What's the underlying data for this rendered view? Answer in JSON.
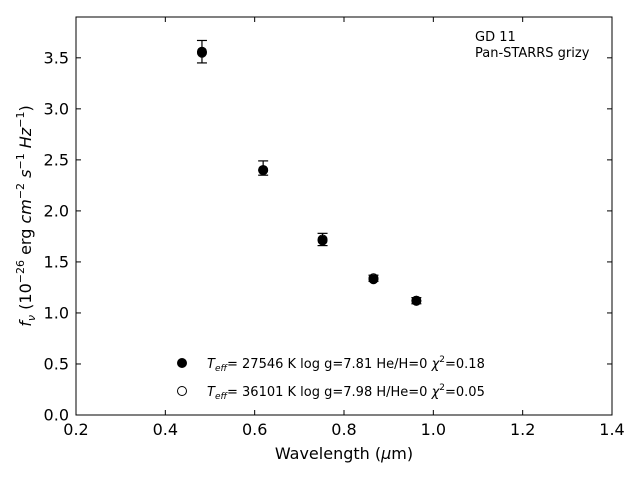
{
  "chart_data": {
    "type": "scatter",
    "annotations": [
      "GD 11",
      "Pan-STARRS grizy"
    ],
    "xlabel": "Wavelength (μm)",
    "ylabel": "f_ν (10^−26 erg cm^−2 s^−1 Hz^−1)",
    "xlim": [
      0.2,
      1.4
    ],
    "ylim": [
      0.0,
      3.9
    ],
    "x_ticks": [
      "0.2",
      "0.4",
      "0.6",
      "0.8",
      "1.0",
      "1.2",
      "1.4"
    ],
    "y_ticks": [
      "0.0",
      "0.5",
      "1.0",
      "1.5",
      "2.0",
      "2.5",
      "3.0",
      "3.5"
    ],
    "grid": false,
    "legend_position": "bottom-center",
    "observed": {
      "x": [
        0.482,
        0.619,
        0.752,
        0.866,
        0.962
      ],
      "y": [
        3.56,
        2.42,
        1.72,
        1.34,
        1.12
      ],
      "yerr": [
        0.11,
        0.07,
        0.06,
        0.03,
        0.03
      ]
    },
    "series": [
      {
        "name": "T_eff= 27546 K  log g=7.81  He/H=0  χ²=0.18",
        "marker": "filled",
        "x": [
          0.482,
          0.619,
          0.752,
          0.866,
          0.962
        ],
        "y": [
          3.56,
          2.4,
          1.71,
          1.33,
          1.12
        ]
      },
      {
        "name": "T_eff= 36101 K  log g=7.98  H/He=0  χ²=0.05",
        "marker": "open",
        "x": [
          0.482,
          0.619,
          0.752,
          0.866,
          0.962
        ],
        "y": [
          3.55,
          2.4,
          1.72,
          1.34,
          1.12
        ]
      }
    ]
  }
}
